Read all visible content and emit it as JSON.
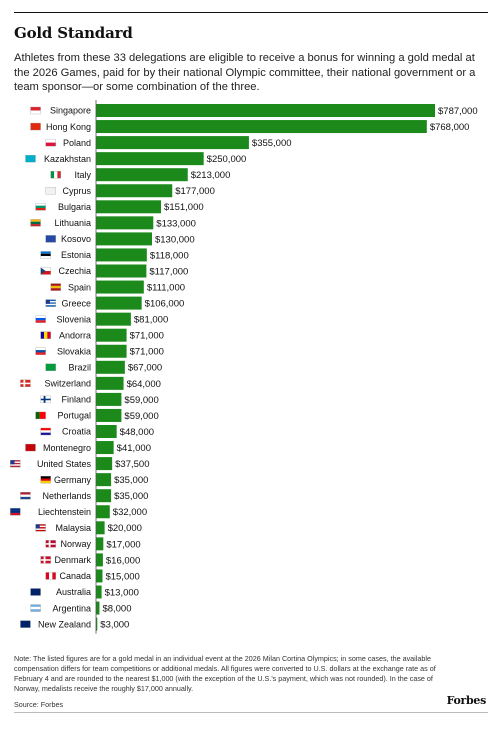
{
  "header": {
    "title": "Gold Standard",
    "subtitle": "Athletes from these 33 delegations are eligible to receive a bonus for winning a gold medal at the 2026 Games, paid for by their national Olympic committee, their national government or a team sponsor—or some combination of the three."
  },
  "footer": {
    "note": "Note: The listed figures are for a gold medal in an individual event at the 2026 Milan Cortina Olympics; in some cases, the available compensation differs for team competitions or additional medals. All figures were converted to U.S. dollars at the exchange rate as of February 4 and are rounded to the nearest $1,000 (with the exception of the U.S.'s payment, which was not rounded). In the case of Norway, medalists receive the roughly $17,000 annually.",
    "source": "Source: Forbes",
    "logo": "Forbes"
  },
  "colors": {
    "bar": "#1b8a1b",
    "axis": "#555555"
  },
  "chart_data": {
    "type": "bar",
    "orientation": "horizontal",
    "title": "Gold Standard",
    "value_format": "$#,###",
    "categories": [
      "Singapore",
      "Hong Kong",
      "Poland",
      "Kazakhstan",
      "Italy",
      "Cyprus",
      "Bulgaria",
      "Lithuania",
      "Kosovo",
      "Estonia",
      "Czechia",
      "Spain",
      "Greece",
      "Slovenia",
      "Andorra",
      "Slovakia",
      "Brazil",
      "Switzerland",
      "Finland",
      "Portugal",
      "Croatia",
      "Montenegro",
      "United States",
      "Germany",
      "Netherlands",
      "Liechtenstein",
      "Malaysia",
      "Norway",
      "Denmark",
      "Canada",
      "Australia",
      "Argentina",
      "New Zealand"
    ],
    "values": [
      787000,
      768000,
      355000,
      250000,
      213000,
      177000,
      151000,
      133000,
      130000,
      118000,
      117000,
      111000,
      106000,
      81000,
      71000,
      71000,
      67000,
      64000,
      59000,
      59000,
      48000,
      41000,
      37500,
      35000,
      35000,
      32000,
      20000,
      17000,
      16000,
      15000,
      13000,
      8000,
      3000
    ],
    "value_labels": [
      "$787,000",
      "$768,000",
      "$355,000",
      "$250,000",
      "$213,000",
      "$177,000",
      "$151,000",
      "$133,000",
      "$130,000",
      "$118,000",
      "$117,000",
      "$111,000",
      "$106,000",
      "$81,000",
      "$71,000",
      "$71,000",
      "$67,000",
      "$64,000",
      "$59,000",
      "$59,000",
      "$48,000",
      "$41,000",
      "$37,500",
      "$35,000",
      "$35,000",
      "$32,000",
      "$20,000",
      "$17,000",
      "$16,000",
      "$15,000",
      "$13,000",
      "$8,000",
      "$3,000"
    ],
    "flags": [
      {
        "type": "h",
        "colors": [
          "#d9232e",
          "#ffffff"
        ]
      },
      {
        "type": "solid",
        "colors": [
          "#de2910"
        ]
      },
      {
        "type": "h",
        "colors": [
          "#ffffff",
          "#dc143c"
        ]
      },
      {
        "type": "solid",
        "colors": [
          "#00afca"
        ]
      },
      {
        "type": "v",
        "colors": [
          "#009246",
          "#ffffff",
          "#ce2b37"
        ]
      },
      {
        "type": "solid",
        "colors": [
          "#f2f2f2"
        ]
      },
      {
        "type": "h",
        "colors": [
          "#ffffff",
          "#00966e",
          "#d62612"
        ]
      },
      {
        "type": "h",
        "colors": [
          "#fdb913",
          "#006a44",
          "#c1272d"
        ]
      },
      {
        "type": "solid",
        "colors": [
          "#244aa5"
        ]
      },
      {
        "type": "h",
        "colors": [
          "#0072ce",
          "#000000",
          "#ffffff"
        ]
      },
      {
        "type": "czech",
        "colors": [
          "#ffffff",
          "#d7141a",
          "#11457e"
        ]
      },
      {
        "type": "h3",
        "colors": [
          "#aa151b",
          "#f1bf00",
          "#aa151b"
        ]
      },
      {
        "type": "stripes",
        "colors": [
          "#0d5eaf",
          "#ffffff"
        ]
      },
      {
        "type": "h",
        "colors": [
          "#ffffff",
          "#005ce6",
          "#ed1c24"
        ]
      },
      {
        "type": "v",
        "colors": [
          "#10069f",
          "#fedf00",
          "#d50032"
        ]
      },
      {
        "type": "h",
        "colors": [
          "#ffffff",
          "#0b4ea2",
          "#ee1c25"
        ]
      },
      {
        "type": "solid",
        "colors": [
          "#009c3b"
        ]
      },
      {
        "type": "cross",
        "colors": [
          "#d52b1e",
          "#ffffff"
        ]
      },
      {
        "type": "cross",
        "colors": [
          "#ffffff",
          "#003580"
        ]
      },
      {
        "type": "v2",
        "colors": [
          "#006600",
          "#ff0000"
        ]
      },
      {
        "type": "h",
        "colors": [
          "#ff0000",
          "#ffffff",
          "#171796"
        ]
      },
      {
        "type": "solid",
        "colors": [
          "#c40308"
        ]
      },
      {
        "type": "stripes",
        "colors": [
          "#b22234",
          "#ffffff"
        ]
      },
      {
        "type": "h",
        "colors": [
          "#000000",
          "#dd0000",
          "#ffce00"
        ]
      },
      {
        "type": "h",
        "colors": [
          "#ae1c28",
          "#ffffff",
          "#21468b"
        ]
      },
      {
        "type": "h",
        "colors": [
          "#002b7f",
          "#002b7f",
          "#ce1126"
        ]
      },
      {
        "type": "stripes",
        "colors": [
          "#cc0001",
          "#ffffff"
        ]
      },
      {
        "type": "cross",
        "colors": [
          "#ba0c2f",
          "#ffffff"
        ]
      },
      {
        "type": "cross",
        "colors": [
          "#c8102e",
          "#ffffff"
        ]
      },
      {
        "type": "v",
        "colors": [
          "#d80621",
          "#ffffff",
          "#d80621"
        ]
      },
      {
        "type": "solid",
        "colors": [
          "#012169"
        ]
      },
      {
        "type": "h",
        "colors": [
          "#74acdf",
          "#ffffff",
          "#74acdf"
        ]
      },
      {
        "type": "solid",
        "colors": [
          "#012169"
        ]
      }
    ]
  }
}
